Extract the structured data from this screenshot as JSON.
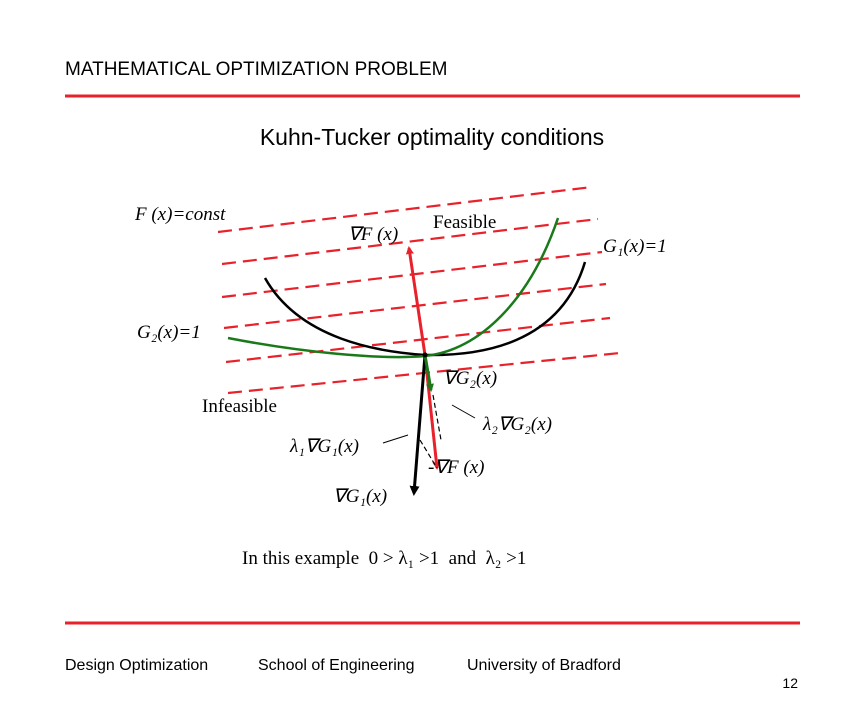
{
  "header": {
    "title": "MATHEMATICAL OPTIMIZATION PROBLEM"
  },
  "slide_title": "Kuhn-Tucker optimality conditions",
  "diagram": {
    "labels": {
      "objective_contour": "F (x)=const",
      "grad_f": "∇F (x)",
      "feasible": "Feasible",
      "constraint_1": "G₁(x)=1",
      "constraint_2": "G₂(x)=1",
      "grad_g2": "∇G₂(x)",
      "infeasible": "Infeasible",
      "lambda2_grad_g2": "λ₂∇G₂(x)",
      "lambda1_grad_g1": "λ₁∇G₁(x)",
      "neg_grad_f": "-∇F (x)",
      "grad_g1": "∇G₁(x)"
    },
    "caption": "In this example  0 > λ₁ >1  and  λ₂ >1"
  },
  "footer": {
    "items": [
      "Design Optimization",
      "School of Engineering",
      "University of Bradford"
    ],
    "page": "12"
  }
}
